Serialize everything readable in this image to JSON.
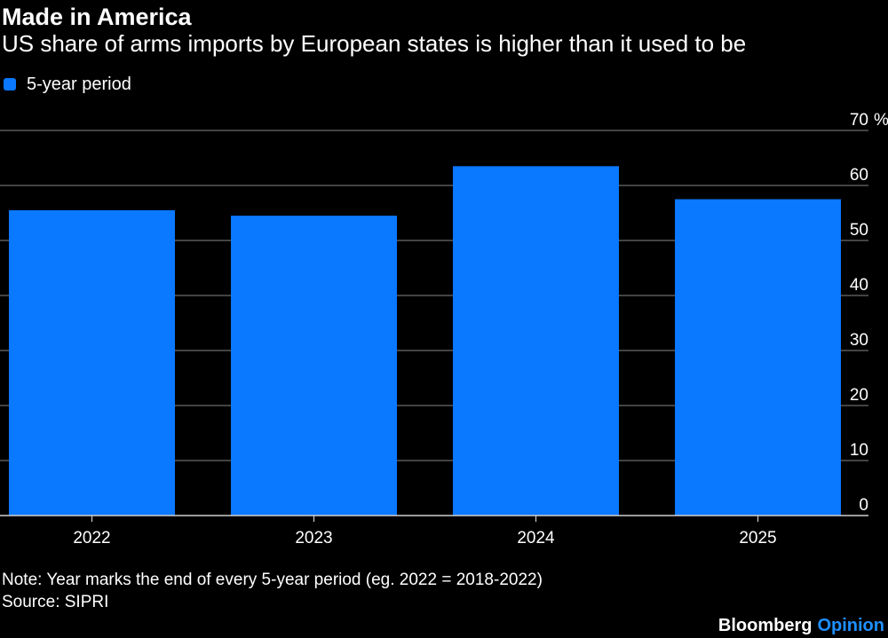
{
  "header": {
    "title": "Made in America",
    "subtitle": "US share of arms imports by European states is higher than it used to be"
  },
  "legend": {
    "label": "5-year period"
  },
  "footer": {
    "note": "Note: Year marks the end of every 5-year period (eg. 2022 = 2018-2022)",
    "source": "Source: SIPRI",
    "brand_name": "Bloomberg",
    "brand_section": "Opinion"
  },
  "colors": {
    "bar": "#0a78ff",
    "grid": "#6b6b6b",
    "axis": "#cfcfcf",
    "text": "#ffffff",
    "brand_section": "#1f8fff"
  },
  "chart_data": {
    "type": "bar",
    "categories": [
      "2022",
      "2023",
      "2024",
      "2025"
    ],
    "series": [
      {
        "name": "5-year period",
        "values": [
          55.5,
          54.5,
          63.5,
          57.5
        ]
      }
    ],
    "ylim": [
      0,
      70
    ],
    "yticks": [
      0,
      10,
      20,
      30,
      40,
      50,
      60,
      70
    ],
    "yunit": "%",
    "yaxis_position": "right",
    "grid": true,
    "legend_position": "top-left"
  }
}
